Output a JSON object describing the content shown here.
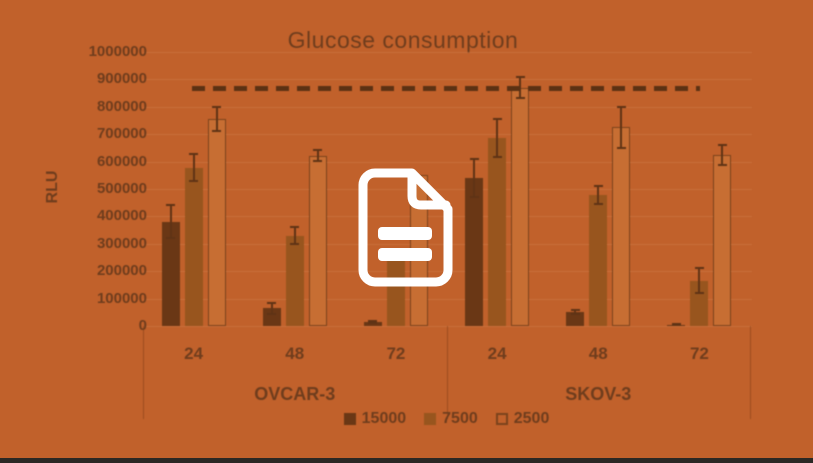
{
  "thumbnail": {
    "background_color": "#c1612b",
    "bottom_bar_color": "#2b2824",
    "overlay_icon": "document-icon"
  },
  "chart_data": {
    "type": "bar",
    "title": "Glucose consumption",
    "ylabel": "RLU",
    "xlabel": "",
    "ylim": [
      0,
      1000000
    ],
    "y_tick_labels": [
      "1000000",
      "900000",
      "800000",
      "700000",
      "600000",
      "500000",
      "400000",
      "300000",
      "200000",
      "100000",
      "0"
    ],
    "grid": true,
    "legend_position": "bottom-center",
    "groups": [
      "OVCAR-3",
      "SKOV-3"
    ],
    "categories": [
      "24",
      "48",
      "72",
      "24",
      "48",
      "72"
    ],
    "series": [
      {
        "name": "15000",
        "values": [
          380000,
          65000,
          15000,
          540000,
          50000,
          5000
        ],
        "errors": [
          60000,
          20000,
          5000,
          70000,
          8000,
          3000
        ]
      },
      {
        "name": "7500",
        "values": [
          578000,
          330000,
          250000,
          685000,
          478000,
          165000
        ],
        "errors": [
          50000,
          30000,
          0,
          70000,
          33000,
          45000
        ]
      },
      {
        "name": "2500",
        "values": [
          755000,
          622000,
          550000,
          870000,
          726000,
          624000
        ],
        "errors": [
          45000,
          20000,
          0,
          38000,
          75000,
          35000
        ]
      }
    ],
    "threshold_line": {
      "value": 865000,
      "style": "dashed"
    }
  },
  "colors": {
    "ink": "#6f3d1d",
    "bar_15000": "#6a3715",
    "bar_7500": "#98551e",
    "bar_2500_fill": "#c76e33",
    "bar_2500_border": "#7b431c",
    "error_bar": "#5f3315",
    "dashed_line": "#5c3113",
    "gridline": "#d07c48",
    "separator": "#7b3c13",
    "icon": "#ffffff"
  }
}
